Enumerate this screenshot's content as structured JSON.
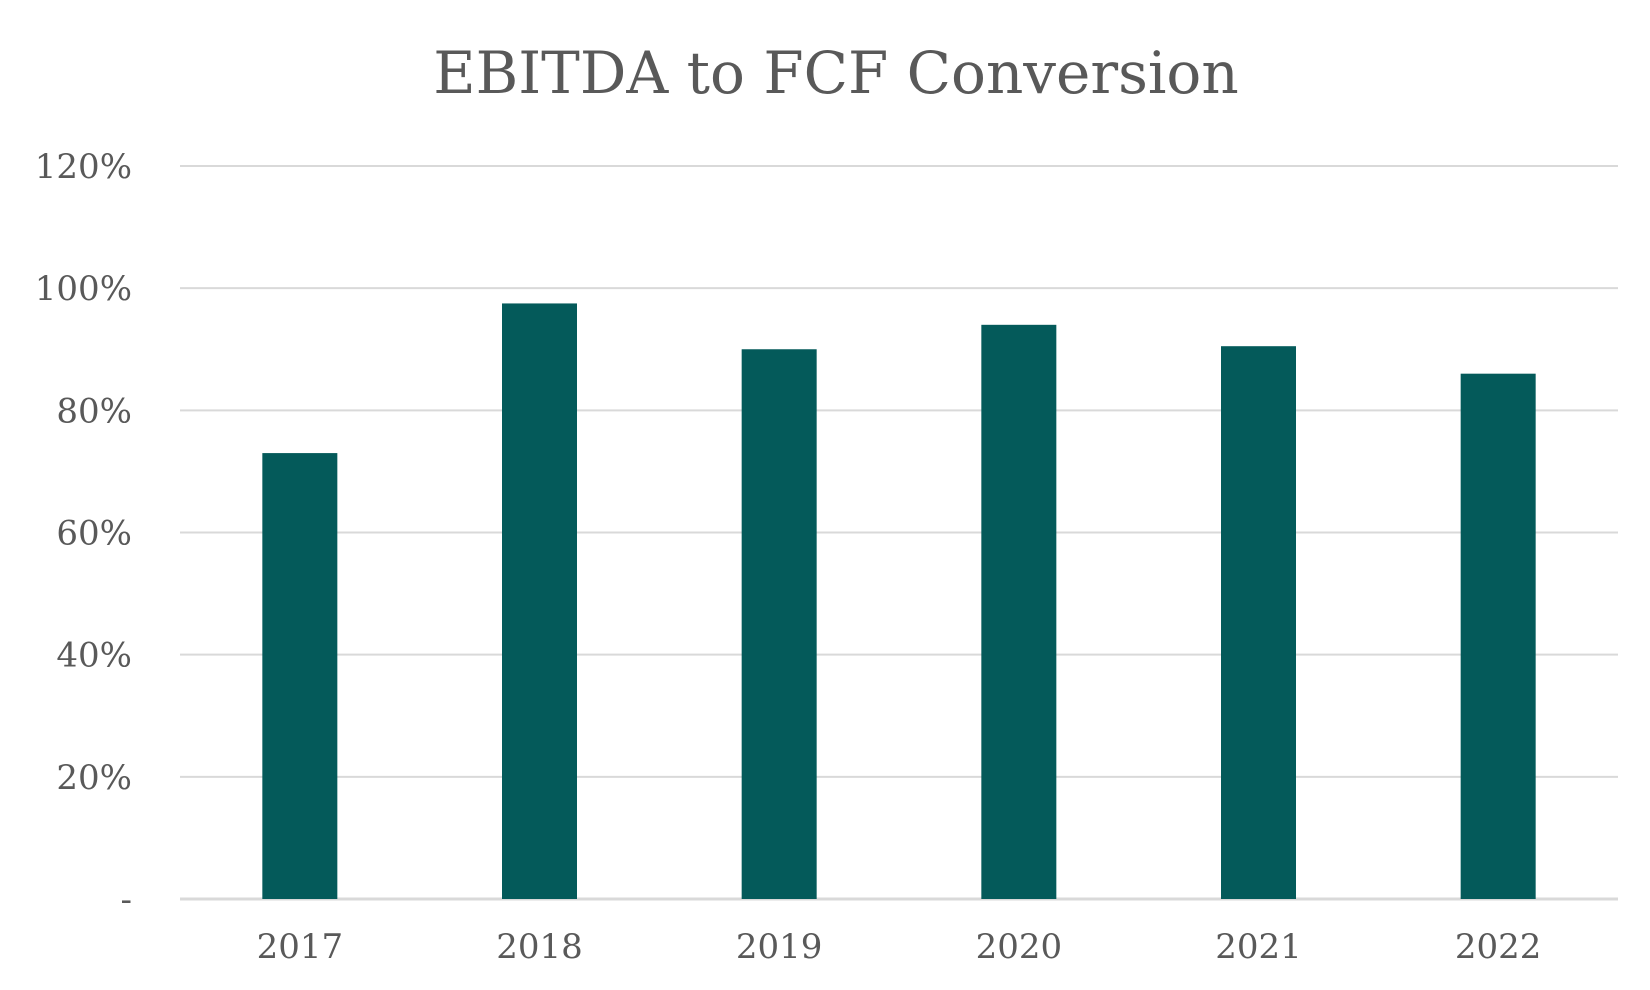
{
  "chart_data": {
    "type": "bar",
    "title": "EBITDA to FCF Conversion",
    "xlabel": "",
    "ylabel": "",
    "categories": [
      "2017",
      "2018",
      "2019",
      "2020",
      "2021",
      "2022"
    ],
    "values": [
      73,
      97.5,
      90,
      94,
      90.5,
      86
    ],
    "ylim": [
      0,
      120
    ],
    "yticks": [
      0,
      20,
      40,
      60,
      80,
      100,
      120
    ],
    "ytick_labels": [
      "-",
      "20%",
      "40%",
      "60%",
      "80%",
      "100%",
      "120%"
    ],
    "grid": true,
    "legend": "none",
    "colors": {
      "bar": "#045A5A",
      "grid": "#D9D9D9",
      "text": "#595959"
    }
  }
}
